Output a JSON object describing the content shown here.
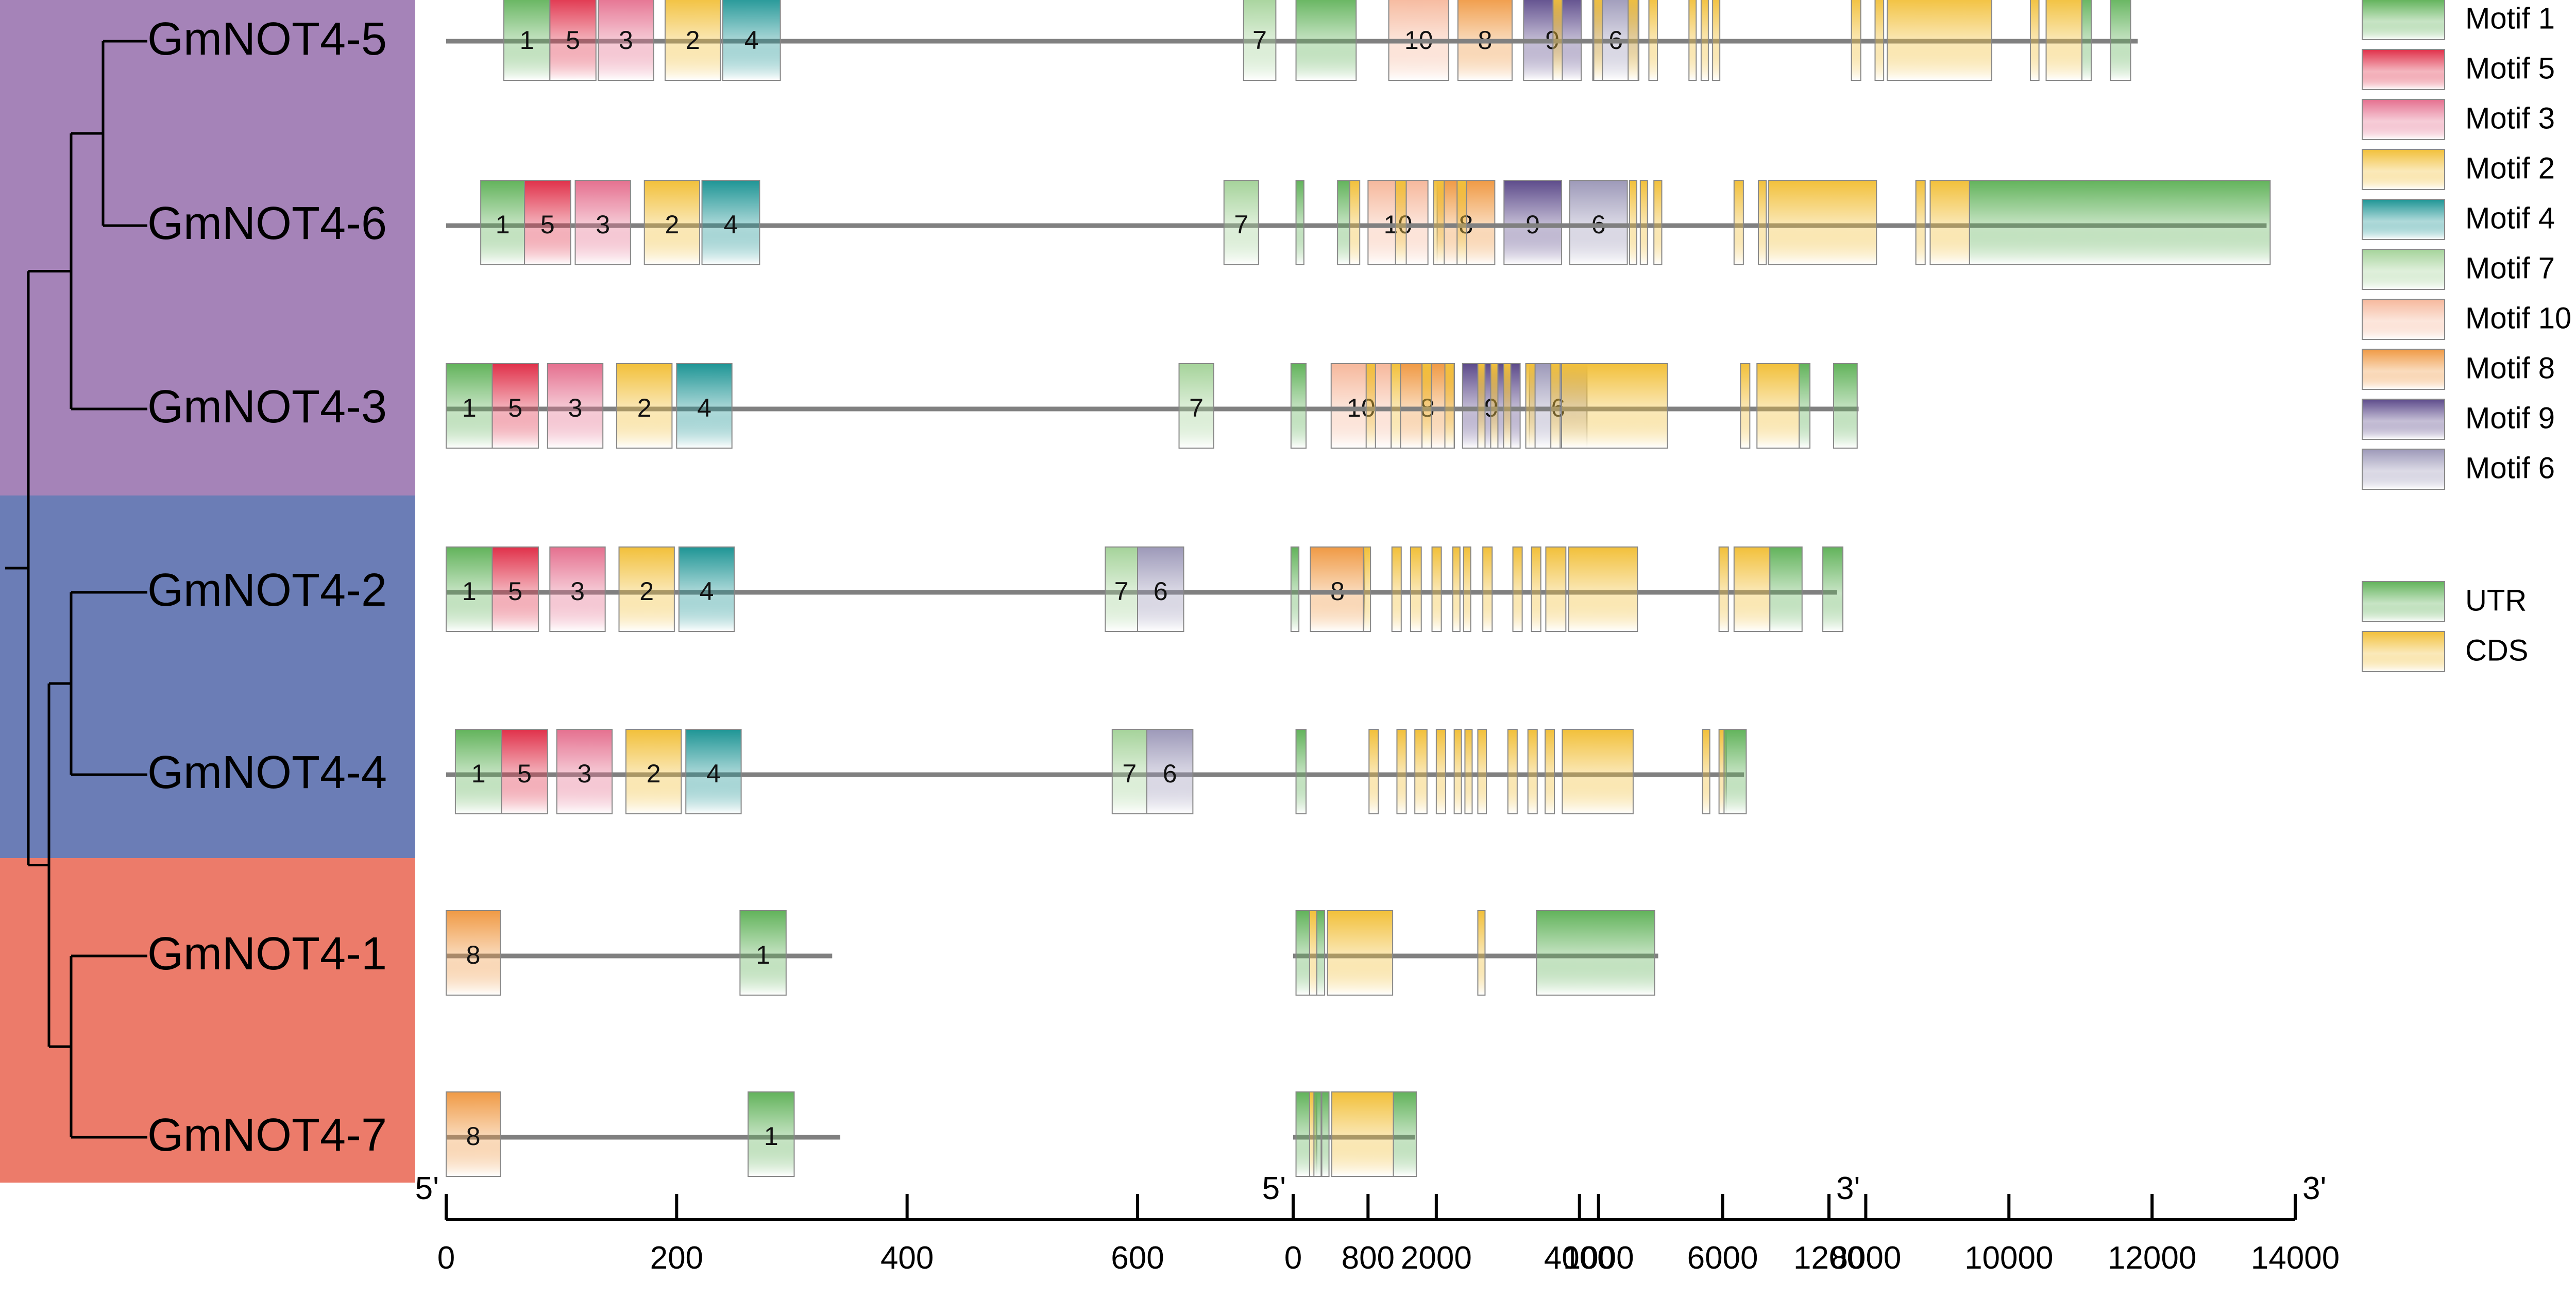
{
  "colors": {
    "clade_purple": "#a583b8",
    "clade_blue": "#6b7db6",
    "clade_red": "#ec7b6a",
    "line": "#808080",
    "box_stroke": "#888888"
  },
  "motif_colors": {
    "1": "#62b35b",
    "5": "#e0314a",
    "3": "#e5708f",
    "2": "#f2c03a",
    "4": "#1e9595",
    "7": "#a5d39a",
    "10": "#f6b89c",
    "8": "#f09a45",
    "9": "#5d4b8b",
    "6": "#9d99b9"
  },
  "feature_colors": {
    "UTR": "#62b35b",
    "CDS": "#f2c03a"
  },
  "legend": {
    "motifs": [
      {
        "key": "1",
        "label": "Motif 1"
      },
      {
        "key": "5",
        "label": "Motif 5"
      },
      {
        "key": "3",
        "label": "Motif 3"
      },
      {
        "key": "2",
        "label": "Motif 2"
      },
      {
        "key": "4",
        "label": "Motif 4"
      },
      {
        "key": "7",
        "label": "Motif 7"
      },
      {
        "key": "10",
        "label": "Motif 10"
      },
      {
        "key": "8",
        "label": "Motif 8"
      },
      {
        "key": "9",
        "label": "Motif 9"
      },
      {
        "key": "6",
        "label": "Motif 6"
      }
    ],
    "features": [
      {
        "key": "UTR",
        "label": "UTR"
      },
      {
        "key": "CDS",
        "label": "CDS"
      }
    ]
  },
  "axes": {
    "motif": {
      "range": [
        0,
        1200
      ],
      "ticks": [
        0,
        200,
        400,
        600,
        800,
        1000,
        1200
      ],
      "labels": [
        "0",
        "200",
        "400",
        "600",
        "800",
        "1000",
        "1200"
      ],
      "start_label": "5'",
      "end_label": "3'"
    },
    "gene": {
      "range": [
        0,
        14000
      ],
      "ticks": [
        0,
        2000,
        4000,
        6000,
        8000,
        10000,
        12000,
        14000
      ],
      "labels": [
        "0",
        "2000",
        "4000",
        "6000",
        "8000",
        "10000",
        "12000",
        "14000"
      ],
      "start_label": "5'",
      "end_label": "3'"
    }
  },
  "genes": [
    {
      "name": "GmNOT4-5",
      "clade": "purple",
      "protein_length": 1040,
      "motifs": [
        [
          "1",
          50,
          90
        ],
        [
          "5",
          90,
          130
        ],
        [
          "3",
          132,
          180
        ],
        [
          "2",
          190,
          238
        ],
        [
          "4",
          240,
          290
        ],
        [
          "7",
          692,
          720
        ],
        [
          "10",
          818,
          870
        ],
        [
          "8",
          878,
          925
        ],
        [
          "9",
          935,
          985
        ],
        [
          "6",
          995,
          1035
        ]
      ],
      "gene_length": 11800,
      "features": [
        [
          "UTR",
          40,
          880
        ],
        [
          "CDS",
          3630,
          3760
        ],
        [
          "CDS",
          4200,
          4320
        ],
        [
          "CDS",
          4680,
          4820
        ],
        [
          "CDS",
          4970,
          5090
        ],
        [
          "CDS",
          5530,
          5620
        ],
        [
          "CDS",
          5700,
          5790
        ],
        [
          "CDS",
          5860,
          5950
        ],
        [
          "CDS",
          7800,
          7930
        ],
        [
          "CDS",
          8130,
          8250
        ],
        [
          "CDS",
          8300,
          9760
        ],
        [
          "CDS",
          10300,
          10420
        ],
        [
          "CDS",
          10520,
          11020
        ],
        [
          "UTR",
          11020,
          11150
        ],
        [
          "UTR",
          11420,
          11700
        ]
      ]
    },
    {
      "name": "GmNOT4-6",
      "clade": "purple",
      "protein_length": 1050,
      "motifs": [
        [
          "1",
          30,
          68
        ],
        [
          "5",
          68,
          108
        ],
        [
          "3",
          112,
          160
        ],
        [
          "2",
          172,
          220
        ],
        [
          "4",
          222,
          272
        ],
        [
          "7",
          675,
          705
        ],
        [
          "10",
          800,
          852
        ],
        [
          "8",
          860,
          910
        ],
        [
          "9",
          918,
          968
        ],
        [
          "6",
          975,
          1025
        ]
      ],
      "gene_length": 13600,
      "features": [
        [
          "UTR",
          40,
          150
        ],
        [
          "UTR",
          620,
          790
        ],
        [
          "CDS",
          790,
          930
        ],
        [
          "CDS",
          1430,
          1580
        ],
        [
          "CDS",
          1960,
          2110
        ],
        [
          "CDS",
          2290,
          2420
        ],
        [
          "CDS",
          4700,
          4790
        ],
        [
          "CDS",
          4850,
          4950
        ],
        [
          "CDS",
          5040,
          5150
        ],
        [
          "CDS",
          6160,
          6290
        ],
        [
          "CDS",
          6500,
          6610
        ],
        [
          "CDS",
          6640,
          8150
        ],
        [
          "CDS",
          8700,
          8830
        ],
        [
          "CDS",
          8900,
          9450
        ],
        [
          "UTR",
          9450,
          13650
        ]
      ]
    },
    {
      "name": "GmNOT4-3",
      "clade": "purple",
      "protein_length": 1010,
      "motifs": [
        [
          "1",
          0,
          40
        ],
        [
          "5",
          40,
          80
        ],
        [
          "3",
          88,
          136
        ],
        [
          "2",
          148,
          196
        ],
        [
          "4",
          200,
          248
        ],
        [
          "7",
          636,
          666
        ],
        [
          "10",
          768,
          820
        ],
        [
          "8",
          828,
          875
        ],
        [
          "9",
          882,
          932
        ],
        [
          "6",
          940,
          990
        ]
      ],
      "gene_length": 7900,
      "features": [
        [
          "UTR",
          -30,
          180
        ],
        [
          "CDS",
          1020,
          1150
        ],
        [
          "CDS",
          1370,
          1500
        ],
        [
          "CDS",
          1800,
          1930
        ],
        [
          "CDS",
          2120,
          2250
        ],
        [
          "CDS",
          2580,
          2680
        ],
        [
          "CDS",
          2760,
          2860
        ],
        [
          "CDS",
          2940,
          3040
        ],
        [
          "CDS",
          3250,
          3380
        ],
        [
          "CDS",
          3600,
          3730
        ],
        [
          "CDS",
          3750,
          5230
        ],
        [
          "CDS",
          6250,
          6380
        ],
        [
          "CDS",
          6480,
          7070
        ],
        [
          "UTR",
          7070,
          7220
        ],
        [
          "UTR",
          7550,
          7880
        ]
      ]
    },
    {
      "name": "GmNOT4-2",
      "clade": "blue",
      "protein_length": 905,
      "motifs": [
        [
          "1",
          0,
          40
        ],
        [
          "5",
          40,
          80
        ],
        [
          "3",
          90,
          138
        ],
        [
          "2",
          150,
          198
        ],
        [
          "4",
          202,
          250
        ],
        [
          "7",
          572,
          600
        ],
        [
          "6",
          600,
          640
        ],
        [
          "8",
          750,
          797
        ]
      ],
      "gene_length": 7600,
      "features": [
        [
          "UTR",
          -30,
          80
        ],
        [
          "CDS",
          980,
          1070
        ],
        [
          "CDS",
          1380,
          1510
        ],
        [
          "CDS",
          1640,
          1790
        ],
        [
          "CDS",
          1940,
          2070
        ],
        [
          "CDS",
          2230,
          2320
        ],
        [
          "CDS",
          2380,
          2470
        ],
        [
          "CDS",
          2650,
          2780
        ],
        [
          "CDS",
          3070,
          3200
        ],
        [
          "CDS",
          3330,
          3460
        ],
        [
          "CDS",
          3530,
          3810
        ],
        [
          "CDS",
          3850,
          4810
        ],
        [
          "CDS",
          5950,
          6080
        ],
        [
          "CDS",
          6160,
          6660
        ],
        [
          "UTR",
          6660,
          7110
        ],
        [
          "UTR",
          7400,
          7680
        ]
      ]
    },
    {
      "name": "GmNOT4-4",
      "clade": "blue",
      "protein_length": 755,
      "motifs": [
        [
          "1",
          8,
          48
        ],
        [
          "5",
          48,
          88
        ],
        [
          "3",
          96,
          144
        ],
        [
          "2",
          156,
          204
        ],
        [
          "4",
          208,
          256
        ],
        [
          "7",
          578,
          608
        ],
        [
          "6",
          608,
          648
        ]
      ],
      "gene_length": 6300,
      "features": [
        [
          "UTR",
          40,
          180
        ],
        [
          "CDS",
          1060,
          1190
        ],
        [
          "CDS",
          1450,
          1580
        ],
        [
          "CDS",
          1700,
          1870
        ],
        [
          "CDS",
          2000,
          2130
        ],
        [
          "CDS",
          2250,
          2340
        ],
        [
          "CDS",
          2400,
          2480
        ],
        [
          "CDS",
          2580,
          2700
        ],
        [
          "CDS",
          3000,
          3130
        ],
        [
          "CDS",
          3280,
          3410
        ],
        [
          "CDS",
          3520,
          3650
        ],
        [
          "CDS",
          3760,
          4750
        ],
        [
          "CDS",
          5720,
          5800
        ],
        [
          "CDS",
          5950,
          6020
        ],
        [
          "UTR",
          6020,
          6330
        ]
      ]
    },
    {
      "name": "GmNOT4-1",
      "clade": "red",
      "protein_length": 335,
      "motifs": [
        [
          "8",
          0,
          47
        ],
        [
          "1",
          255,
          295
        ]
      ],
      "gene_length": 5100,
      "features": [
        [
          "UTR",
          40,
          230
        ],
        [
          "CDS",
          230,
          330
        ],
        [
          "UTR",
          330,
          440
        ],
        [
          "CDS",
          480,
          1390
        ],
        [
          "CDS",
          2580,
          2640
        ],
        [
          "UTR",
          3400,
          5050
        ]
      ]
    },
    {
      "name": "GmNOT4-7",
      "clade": "red",
      "protein_length": 342,
      "motifs": [
        [
          "8",
          0,
          47
        ],
        [
          "1",
          262,
          302
        ]
      ],
      "gene_length": 1700,
      "features": [
        [
          "UTR",
          40,
          230
        ],
        [
          "CDS",
          230,
          290
        ],
        [
          "UTR",
          290,
          340
        ],
        [
          "UTR",
          400,
          480
        ],
        [
          "CDS",
          540,
          1400
        ],
        [
          "UTR",
          1400,
          1720
        ]
      ]
    }
  ]
}
